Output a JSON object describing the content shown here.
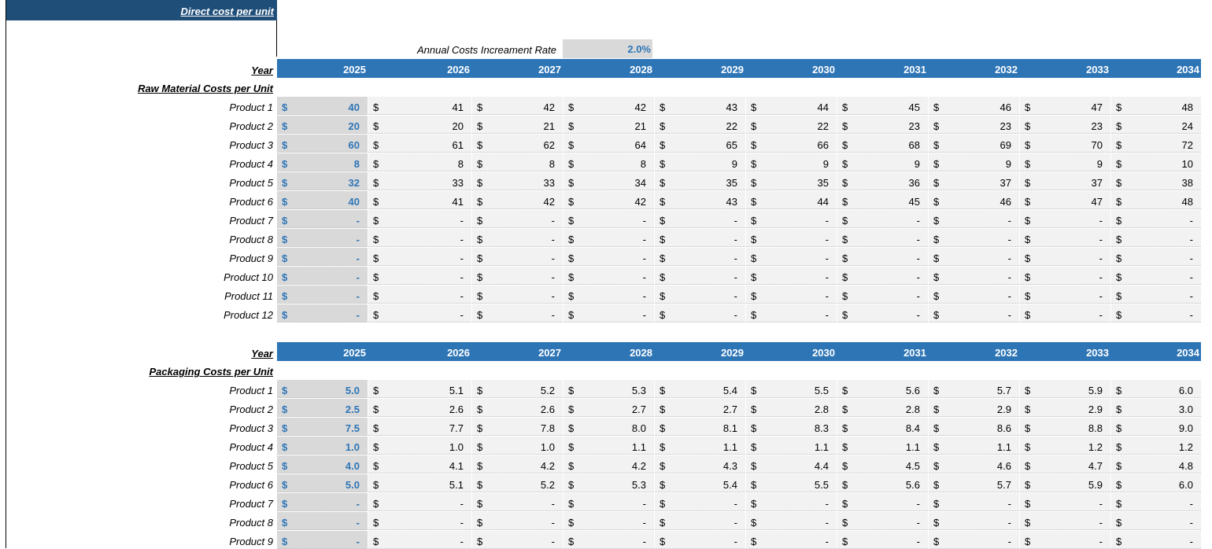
{
  "title": "Direct cost per unit",
  "rate": {
    "label": "Annual Costs Increament Rate",
    "value": "2.0%"
  },
  "years": [
    "2025",
    "2026",
    "2027",
    "2028",
    "2029",
    "2030",
    "2031",
    "2032",
    "2033",
    "2034"
  ],
  "year_label": "Year",
  "currency": "$",
  "sections": [
    {
      "header": "Raw Material Costs per Unit",
      "rows": [
        {
          "label": "Product 1",
          "values": [
            "40",
            "41",
            "42",
            "42",
            "43",
            "44",
            "45",
            "46",
            "47",
            "48"
          ]
        },
        {
          "label": "Product 2",
          "values": [
            "20",
            "20",
            "21",
            "21",
            "22",
            "22",
            "23",
            "23",
            "23",
            "24"
          ]
        },
        {
          "label": "Product 3",
          "values": [
            "60",
            "61",
            "62",
            "64",
            "65",
            "66",
            "68",
            "69",
            "70",
            "72"
          ]
        },
        {
          "label": "Product 4",
          "values": [
            "8",
            "8",
            "8",
            "8",
            "9",
            "9",
            "9",
            "9",
            "9",
            "10"
          ]
        },
        {
          "label": "Product 5",
          "values": [
            "32",
            "33",
            "33",
            "34",
            "35",
            "35",
            "36",
            "37",
            "37",
            "38"
          ]
        },
        {
          "label": "Product 6",
          "values": [
            "40",
            "41",
            "42",
            "42",
            "43",
            "44",
            "45",
            "46",
            "47",
            "48"
          ]
        },
        {
          "label": "Product 7",
          "values": [
            "-",
            "-",
            "-",
            "-",
            "-",
            "-",
            "-",
            "-",
            "-",
            "-"
          ]
        },
        {
          "label": "Product 8",
          "values": [
            "-",
            "-",
            "-",
            "-",
            "-",
            "-",
            "-",
            "-",
            "-",
            "-"
          ]
        },
        {
          "label": "Product 9",
          "values": [
            "-",
            "-",
            "-",
            "-",
            "-",
            "-",
            "-",
            "-",
            "-",
            "-"
          ]
        },
        {
          "label": "Product 10",
          "values": [
            "-",
            "-",
            "-",
            "-",
            "-",
            "-",
            "-",
            "-",
            "-",
            "-"
          ]
        },
        {
          "label": "Product 11",
          "values": [
            "-",
            "-",
            "-",
            "-",
            "-",
            "-",
            "-",
            "-",
            "-",
            "-"
          ]
        },
        {
          "label": "Product 12",
          "values": [
            "-",
            "-",
            "-",
            "-",
            "-",
            "-",
            "-",
            "-",
            "-",
            "-"
          ]
        }
      ]
    },
    {
      "header": "Packaging Costs per Unit",
      "rows": [
        {
          "label": "Product 1",
          "values": [
            "5.0",
            "5.1",
            "5.2",
            "5.3",
            "5.4",
            "5.5",
            "5.6",
            "5.7",
            "5.9",
            "6.0"
          ]
        },
        {
          "label": "Product 2",
          "values": [
            "2.5",
            "2.6",
            "2.6",
            "2.7",
            "2.7",
            "2.8",
            "2.8",
            "2.9",
            "2.9",
            "3.0"
          ]
        },
        {
          "label": "Product 3",
          "values": [
            "7.5",
            "7.7",
            "7.8",
            "8.0",
            "8.1",
            "8.3",
            "8.4",
            "8.6",
            "8.8",
            "9.0"
          ]
        },
        {
          "label": "Product 4",
          "values": [
            "1.0",
            "1.0",
            "1.0",
            "1.1",
            "1.1",
            "1.1",
            "1.1",
            "1.1",
            "1.2",
            "1.2"
          ]
        },
        {
          "label": "Product 5",
          "values": [
            "4.0",
            "4.1",
            "4.2",
            "4.2",
            "4.3",
            "4.4",
            "4.5",
            "4.6",
            "4.7",
            "4.8"
          ]
        },
        {
          "label": "Product 6",
          "values": [
            "5.0",
            "5.1",
            "5.2",
            "5.3",
            "5.4",
            "5.5",
            "5.6",
            "5.7",
            "5.9",
            "6.0"
          ]
        },
        {
          "label": "Product 7",
          "values": [
            "-",
            "-",
            "-",
            "-",
            "-",
            "-",
            "-",
            "-",
            "-",
            "-"
          ]
        },
        {
          "label": "Product 8",
          "values": [
            "-",
            "-",
            "-",
            "-",
            "-",
            "-",
            "-",
            "-",
            "-",
            "-"
          ]
        },
        {
          "label": "Product 9",
          "values": [
            "-",
            "-",
            "-",
            "-",
            "-",
            "-",
            "-",
            "-",
            "-",
            "-"
          ]
        }
      ]
    }
  ]
}
